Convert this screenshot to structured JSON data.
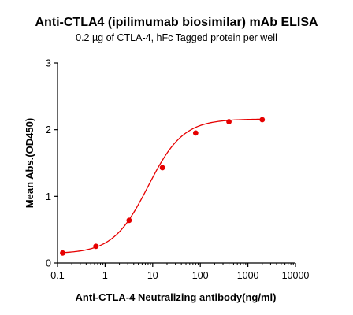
{
  "chart_data": {
    "type": "scatter",
    "title": "Anti-CTLA4 (ipilimumab biosimilar) mAb ELISA",
    "subtitle": "0.2 µg of CTLA-4, hFc Tagged protein per well",
    "xlabel": "Anti-CTLA-4 Neutralizing antibody(ng/ml)",
    "ylabel": "Mean Abs.(OD450)",
    "x_scale": "log",
    "xlim": [
      0.1,
      10000
    ],
    "ylim": [
      0,
      3
    ],
    "x_ticks": [
      "0.1",
      "1",
      "10",
      "100",
      "1000",
      "10000"
    ],
    "y_ticks": [
      "0",
      "1",
      "2",
      "3"
    ],
    "grid": false,
    "legend": "none",
    "color": "#e60000",
    "series": [
      {
        "x": [
          0.128,
          0.64,
          3.2,
          16,
          80,
          400,
          2000
        ],
        "y": [
          0.15,
          0.25,
          0.64,
          1.43,
          1.95,
          2.12,
          2.15
        ],
        "fit_curve": "4PL"
      }
    ]
  }
}
